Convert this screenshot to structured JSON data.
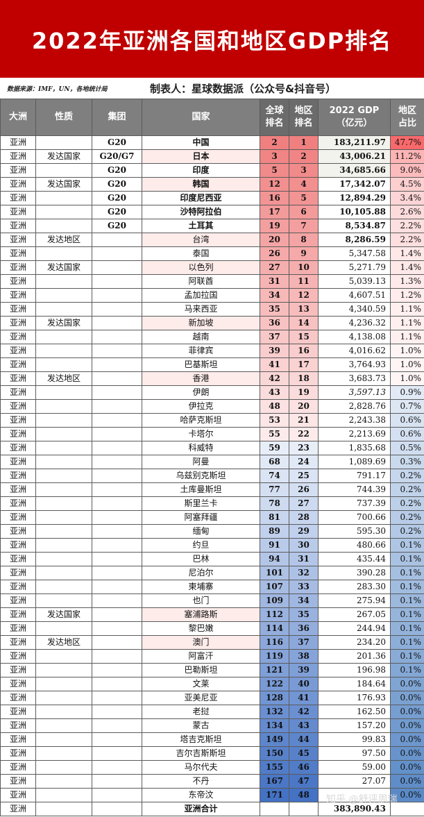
{
  "title": "2022年亚洲各国和地区GDP排名",
  "source": "数据来源：IMF，UN，各地统计局",
  "maker": "制表人：星球数据派（公众号&抖音号）",
  "watermark": "知乎 @舒评周瑞",
  "headers": {
    "continent": "大洲",
    "nature": "性质",
    "group": "集团",
    "country": "国家",
    "global_rank": "全球\n排名",
    "region_rank": "地区\n排名",
    "gdp": "2022 GDP\n（亿元）",
    "share": "地区\n占比"
  },
  "rows": [
    {
      "continent": "亚洲",
      "nature": "",
      "group": "G20",
      "country": "中国",
      "global_rank": "2",
      "region_rank": "1",
      "gdp": "183,211.97",
      "share": "47.7%",
      "share_value": 47.7
    },
    {
      "continent": "亚洲",
      "nature": "发达国家",
      "group": "G20/G7",
      "country": "日本",
      "global_rank": "3",
      "region_rank": "2",
      "gdp": "43,006.21",
      "share": "11.2%",
      "share_value": 11.2
    },
    {
      "continent": "亚洲",
      "nature": "",
      "group": "G20",
      "country": "印度",
      "global_rank": "5",
      "region_rank": "3",
      "gdp": "34,685.66",
      "share": "9.0%",
      "share_value": 9.0
    },
    {
      "continent": "亚洲",
      "nature": "发达国家",
      "group": "G20",
      "country": "韩国",
      "global_rank": "12",
      "region_rank": "4",
      "gdp": "17,342.07",
      "share": "4.5%",
      "share_value": 4.5
    },
    {
      "continent": "亚洲",
      "nature": "",
      "group": "G20",
      "country": "印度尼西亚",
      "global_rank": "16",
      "region_rank": "5",
      "gdp": "12,894.29",
      "share": "3.4%",
      "share_value": 3.4
    },
    {
      "continent": "亚洲",
      "nature": "",
      "group": "G20",
      "country": "沙特阿拉伯",
      "global_rank": "17",
      "region_rank": "6",
      "gdp": "10,105.88",
      "share": "2.6%",
      "share_value": 2.6
    },
    {
      "continent": "亚洲",
      "nature": "",
      "group": "G20",
      "country": "土耳其",
      "global_rank": "19",
      "region_rank": "7",
      "gdp": "8,534.87",
      "share": "2.2%",
      "share_value": 2.2
    },
    {
      "continent": "亚洲",
      "nature": "发达地区",
      "group": "",
      "country": "台湾",
      "global_rank": "20",
      "region_rank": "8",
      "gdp": "8,286.59",
      "share": "2.2%",
      "share_value": 2.2
    },
    {
      "continent": "亚洲",
      "nature": "",
      "group": "",
      "country": "泰国",
      "global_rank": "26",
      "region_rank": "9",
      "gdp": "5,347.58",
      "share": "1.4%",
      "share_value": 1.4
    },
    {
      "continent": "亚洲",
      "nature": "发达国家",
      "group": "",
      "country": "以色列",
      "global_rank": "27",
      "region_rank": "10",
      "gdp": "5,271.79",
      "share": "1.4%",
      "share_value": 1.4
    },
    {
      "continent": "亚洲",
      "nature": "",
      "group": "",
      "country": "阿联酋",
      "global_rank": "31",
      "region_rank": "11",
      "gdp": "5,039.13",
      "share": "1.3%",
      "share_value": 1.3
    },
    {
      "continent": "亚洲",
      "nature": "",
      "group": "",
      "country": "孟加拉国",
      "global_rank": "34",
      "region_rank": "12",
      "gdp": "4,607.51",
      "share": "1.2%",
      "share_value": 1.2
    },
    {
      "continent": "亚洲",
      "nature": "",
      "group": "",
      "country": "马来西亚",
      "global_rank": "35",
      "region_rank": "13",
      "gdp": "4,340.59",
      "share": "1.1%",
      "share_value": 1.1
    },
    {
      "continent": "亚洲",
      "nature": "发达国家",
      "group": "",
      "country": "新加坡",
      "global_rank": "36",
      "region_rank": "14",
      "gdp": "4,236.32",
      "share": "1.1%",
      "share_value": 1.1
    },
    {
      "continent": "亚洲",
      "nature": "",
      "group": "",
      "country": "越南",
      "global_rank": "37",
      "region_rank": "15",
      "gdp": "4,138.08",
      "share": "1.1%",
      "share_value": 1.1
    },
    {
      "continent": "亚洲",
      "nature": "",
      "group": "",
      "country": "菲律宾",
      "global_rank": "39",
      "region_rank": "16",
      "gdp": "4,016.62",
      "share": "1.0%",
      "share_value": 1.0
    },
    {
      "continent": "亚洲",
      "nature": "",
      "group": "",
      "country": "巴基斯坦",
      "global_rank": "41",
      "region_rank": "17",
      "gdp": "3,764.93",
      "share": "1.0%",
      "share_value": 1.0
    },
    {
      "continent": "亚洲",
      "nature": "发达地区",
      "group": "",
      "country": "香港",
      "global_rank": "42",
      "region_rank": "18",
      "gdp": "3,683.73",
      "share": "1.0%",
      "share_value": 1.0
    },
    {
      "continent": "亚洲",
      "nature": "",
      "group": "",
      "country": "伊朗",
      "global_rank": "43",
      "region_rank": "19",
      "gdp": "3,597.13",
      "share": "0.9%",
      "share_value": 0.9
    },
    {
      "continent": "亚洲",
      "nature": "",
      "group": "",
      "country": "伊拉克",
      "global_rank": "48",
      "region_rank": "20",
      "gdp": "2,828.76",
      "share": "0.7%",
      "share_value": 0.7
    },
    {
      "continent": "亚洲",
      "nature": "",
      "group": "",
      "country": "哈萨克斯坦",
      "global_rank": "53",
      "region_rank": "21",
      "gdp": "2,243.38",
      "share": "0.6%",
      "share_value": 0.6
    },
    {
      "continent": "亚洲",
      "nature": "",
      "group": "",
      "country": "卡塔尔",
      "global_rank": "55",
      "region_rank": "22",
      "gdp": "2,213.69",
      "share": "0.6%",
      "share_value": 0.6
    },
    {
      "continent": "亚洲",
      "nature": "",
      "group": "",
      "country": "科威特",
      "global_rank": "59",
      "region_rank": "23",
      "gdp": "1,835.68",
      "share": "0.5%",
      "share_value": 0.5
    },
    {
      "continent": "亚洲",
      "nature": "",
      "group": "",
      "country": "阿曼",
      "global_rank": "68",
      "region_rank": "24",
      "gdp": "1,089.69",
      "share": "0.3%",
      "share_value": 0.3
    },
    {
      "continent": "亚洲",
      "nature": "",
      "group": "",
      "country": "乌兹别克斯坦",
      "global_rank": "74",
      "region_rank": "25",
      "gdp": "791.17",
      "share": "0.2%",
      "share_value": 0.2
    },
    {
      "continent": "亚洲",
      "nature": "",
      "group": "",
      "country": "土库曼斯坦",
      "global_rank": "77",
      "region_rank": "26",
      "gdp": "744.39",
      "share": "0.2%",
      "share_value": 0.2
    },
    {
      "continent": "亚洲",
      "nature": "",
      "group": "",
      "country": "斯里兰卡",
      "global_rank": "78",
      "region_rank": "27",
      "gdp": "737.39",
      "share": "0.2%",
      "share_value": 0.2
    },
    {
      "continent": "亚洲",
      "nature": "",
      "group": "",
      "country": "阿塞拜疆",
      "global_rank": "81",
      "region_rank": "28",
      "gdp": "700.66",
      "share": "0.2%",
      "share_value": 0.2
    },
    {
      "continent": "亚洲",
      "nature": "",
      "group": "",
      "country": "缅甸",
      "global_rank": "89",
      "region_rank": "29",
      "gdp": "595.30",
      "share": "0.2%",
      "share_value": 0.2
    },
    {
      "continent": "亚洲",
      "nature": "",
      "group": "",
      "country": "约旦",
      "global_rank": "91",
      "region_rank": "30",
      "gdp": "480.66",
      "share": "0.1%",
      "share_value": 0.1
    },
    {
      "continent": "亚洲",
      "nature": "",
      "group": "",
      "country": "巴林",
      "global_rank": "94",
      "region_rank": "31",
      "gdp": "435.44",
      "share": "0.1%",
      "share_value": 0.1
    },
    {
      "continent": "亚洲",
      "nature": "",
      "group": "",
      "country": "尼泊尔",
      "global_rank": "101",
      "region_rank": "32",
      "gdp": "390.28",
      "share": "0.1%",
      "share_value": 0.1
    },
    {
      "continent": "亚洲",
      "nature": "",
      "group": "",
      "country": "柬埔寨",
      "global_rank": "107",
      "region_rank": "33",
      "gdp": "283.30",
      "share": "0.1%",
      "share_value": 0.1
    },
    {
      "continent": "亚洲",
      "nature": "",
      "group": "",
      "country": "也门",
      "global_rank": "109",
      "region_rank": "34",
      "gdp": "275.94",
      "share": "0.1%",
      "share_value": 0.1
    },
    {
      "continent": "亚洲",
      "nature": "发达国家",
      "group": "",
      "country": "塞浦路斯",
      "global_rank": "112",
      "region_rank": "35",
      "gdp": "267.05",
      "share": "0.1%",
      "share_value": 0.1
    },
    {
      "continent": "亚洲",
      "nature": "",
      "group": "",
      "country": "黎巴嫩",
      "global_rank": "114",
      "region_rank": "36",
      "gdp": "244.94",
      "share": "0.1%",
      "share_value": 0.1
    },
    {
      "continent": "亚洲",
      "nature": "发达地区",
      "group": "",
      "country": "澳门",
      "global_rank": "116",
      "region_rank": "37",
      "gdp": "234.20",
      "share": "0.1%",
      "share_value": 0.1
    },
    {
      "continent": "亚洲",
      "nature": "",
      "group": "",
      "country": "阿富汗",
      "global_rank": "119",
      "region_rank": "38",
      "gdp": "201.36",
      "share": "0.1%",
      "share_value": 0.1
    },
    {
      "continent": "亚洲",
      "nature": "",
      "group": "",
      "country": "巴勒斯坦",
      "global_rank": "121",
      "region_rank": "39",
      "gdp": "196.98",
      "share": "0.1%",
      "share_value": 0.1
    },
    {
      "continent": "亚洲",
      "nature": "",
      "group": "",
      "country": "文莱",
      "global_rank": "122",
      "region_rank": "40",
      "gdp": "184.64",
      "share": "0.0%",
      "share_value": 0.0
    },
    {
      "continent": "亚洲",
      "nature": "",
      "group": "",
      "country": "亚美尼亚",
      "global_rank": "128",
      "region_rank": "41",
      "gdp": "176.93",
      "share": "0.0%",
      "share_value": 0.0
    },
    {
      "continent": "亚洲",
      "nature": "",
      "group": "",
      "country": "老挝",
      "global_rank": "132",
      "region_rank": "42",
      "gdp": "162.50",
      "share": "0.0%",
      "share_value": 0.0
    },
    {
      "continent": "亚洲",
      "nature": "",
      "group": "",
      "country": "蒙古",
      "global_rank": "134",
      "region_rank": "43",
      "gdp": "157.20",
      "share": "0.0%",
      "share_value": 0.0
    },
    {
      "continent": "亚洲",
      "nature": "",
      "group": "",
      "country": "塔吉克斯坦",
      "global_rank": "149",
      "region_rank": "44",
      "gdp": "99.83",
      "share": "0.0%",
      "share_value": 0.0
    },
    {
      "continent": "亚洲",
      "nature": "",
      "group": "",
      "country": "吉尔吉斯斯坦",
      "global_rank": "150",
      "region_rank": "45",
      "gdp": "97.50",
      "share": "0.0%",
      "share_value": 0.0
    },
    {
      "continent": "亚洲",
      "nature": "",
      "group": "",
      "country": "马尔代夫",
      "global_rank": "155",
      "region_rank": "46",
      "gdp": "59.00",
      "share": "0.0%",
      "share_value": 0.0
    },
    {
      "continent": "亚洲",
      "nature": "",
      "group": "",
      "country": "不丹",
      "global_rank": "167",
      "region_rank": "47",
      "gdp": "27.07",
      "share": "0.0%",
      "share_value": 0.0
    },
    {
      "continent": "亚洲",
      "nature": "",
      "group": "",
      "country": "东帝汶",
      "global_rank": "171",
      "region_rank": "48",
      "gdp": "",
      "share": "0.0%",
      "share_value": 0.0
    }
  ],
  "total": {
    "continent": "亚洲",
    "label": "亚洲合计",
    "gdp": "383,890.43"
  },
  "colors": {
    "banner": "#c00000",
    "header_bg": "#7f7f7f",
    "rank_high": "#f08080",
    "rank_low": "#4472c4",
    "share_high": "#f8696b",
    "share_low": "#5a8ac6",
    "row_tint_developed": "#fdecea"
  }
}
